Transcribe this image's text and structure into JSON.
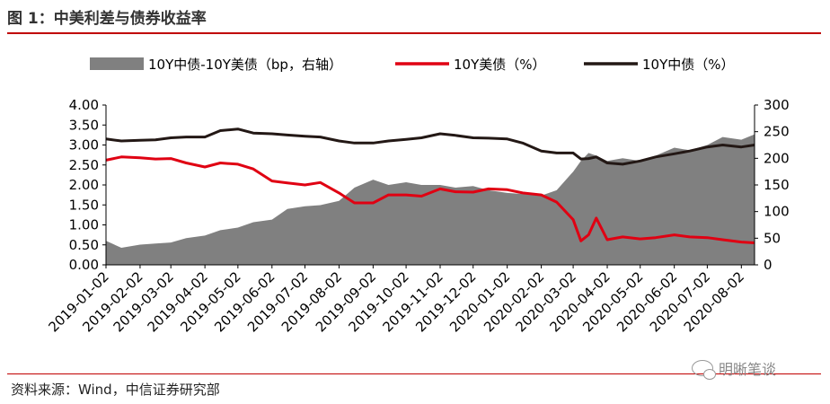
{
  "header": {
    "title": "图 1：中美利差与债券收益率"
  },
  "footer": {
    "source": "资料来源：Wind，中信证券研究部",
    "watermark": "明晰笔谈"
  },
  "colors": {
    "spread": "#808080",
    "us10y": "#e00012",
    "cn10y": "#231815",
    "rule": "#c00000"
  },
  "chart_data": {
    "type": "line",
    "title": "",
    "legend_position": "top",
    "grid": false,
    "x_tick_labels": [
      "2019-01-02",
      "2019-02-02",
      "2019-03-02",
      "2019-04-02",
      "2019-05-02",
      "2019-06-02",
      "2019-07-02",
      "2019-08-02",
      "2019-09-02",
      "2019-10-02",
      "2019-11-02",
      "2019-12-02",
      "2020-01-02",
      "2020-02-02",
      "2020-03-02",
      "2020-04-02",
      "2020-05-02",
      "2020-06-02",
      "2020-07-02",
      "2020-08-02"
    ],
    "y_left": {
      "ylim": [
        0,
        4
      ],
      "ticks": [
        "0.00",
        "0.50",
        "1.00",
        "1.50",
        "2.00",
        "2.50",
        "3.00",
        "3.50",
        "4.00"
      ]
    },
    "y_right": {
      "ylim": [
        0,
        300
      ],
      "ticks": [
        "0",
        "50",
        "100",
        "150",
        "200",
        "250",
        "300"
      ]
    },
    "x": [
      "2019-01-02",
      "2019-01-16",
      "2019-02-02",
      "2019-02-16",
      "2019-03-02",
      "2019-03-16",
      "2019-04-02",
      "2019-04-16",
      "2019-05-02",
      "2019-05-16",
      "2019-06-02",
      "2019-06-16",
      "2019-07-02",
      "2019-07-16",
      "2019-08-02",
      "2019-08-16",
      "2019-09-02",
      "2019-09-16",
      "2019-10-02",
      "2019-10-16",
      "2019-11-02",
      "2019-11-16",
      "2019-12-02",
      "2019-12-16",
      "2020-01-02",
      "2020-01-16",
      "2020-02-02",
      "2020-02-16",
      "2020-03-02",
      "2020-03-09",
      "2020-03-16",
      "2020-03-23",
      "2020-04-02",
      "2020-04-16",
      "2020-05-02",
      "2020-05-16",
      "2020-06-02",
      "2020-06-16",
      "2020-07-02",
      "2020-07-16",
      "2020-08-02",
      "2020-08-14"
    ],
    "series": [
      {
        "name": "10Y中债-10Y美债（bp，右轴）",
        "type": "area",
        "axis": "right",
        "values": [
          45,
          32,
          38,
          40,
          42,
          50,
          55,
          65,
          70,
          80,
          85,
          105,
          110,
          112,
          120,
          145,
          160,
          150,
          155,
          150,
          150,
          145,
          148,
          140,
          135,
          133,
          130,
          140,
          175,
          195,
          210,
          205,
          195,
          200,
          195,
          205,
          220,
          215,
          225,
          240,
          235,
          245
        ]
      },
      {
        "name": "10Y美债（%）",
        "type": "line",
        "axis": "left",
        "values": [
          2.62,
          2.7,
          2.68,
          2.65,
          2.66,
          2.55,
          2.45,
          2.55,
          2.52,
          2.4,
          2.1,
          2.05,
          2.0,
          2.06,
          1.8,
          1.55,
          1.55,
          1.75,
          1.75,
          1.72,
          1.9,
          1.83,
          1.82,
          1.9,
          1.88,
          1.8,
          1.75,
          1.57,
          1.13,
          0.6,
          0.75,
          1.17,
          0.63,
          0.7,
          0.65,
          0.68,
          0.75,
          0.7,
          0.68,
          0.63,
          0.57,
          0.55
        ]
      },
      {
        "name": "10Y中债（%）",
        "type": "line",
        "axis": "left",
        "values": [
          3.15,
          3.1,
          3.12,
          3.13,
          3.18,
          3.2,
          3.2,
          3.36,
          3.4,
          3.3,
          3.28,
          3.25,
          3.22,
          3.2,
          3.1,
          3.05,
          3.05,
          3.1,
          3.14,
          3.18,
          3.28,
          3.24,
          3.18,
          3.17,
          3.15,
          3.05,
          2.85,
          2.8,
          2.8,
          2.65,
          2.66,
          2.7,
          2.55,
          2.52,
          2.6,
          2.7,
          2.78,
          2.85,
          2.95,
          3.0,
          2.95,
          3.0
        ]
      }
    ]
  }
}
